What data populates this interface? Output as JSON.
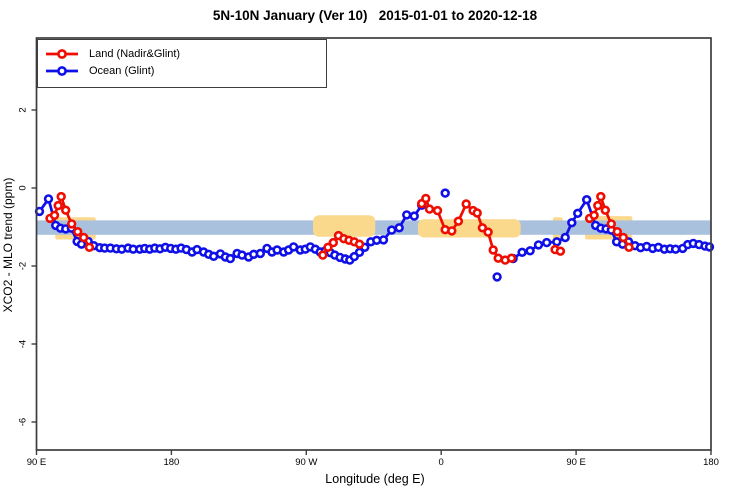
{
  "title": "5N-10N January (Ver 10)   2015-01-01 to 2020-12-18",
  "legend": {
    "items": [
      {
        "label": "Land (Nadir&Glint)",
        "color": "#ee0d00"
      },
      {
        "label": "Ocean (Glint)",
        "color": "#0f0fe8"
      }
    ]
  },
  "colors": {
    "land": "#ee0d00",
    "ocean": "#0f0fe8",
    "reference_band": "#a9c1dd",
    "land_shading": "#fbd98c",
    "axis": "#3d3d3d",
    "marker_fill": "#ffffff"
  },
  "chart_data": {
    "type": "line",
    "title": "5N-10N January (Ver 10)   2015-01-01 to 2020-12-18",
    "xlabel": "Longitude (deg E)",
    "ylabel": "XCO2 - MLO trend (ppm)",
    "x_axis_note": "wrapped longitude axis: plot-degrees 90..540 shown as 90E,180,90W,0,90E,180",
    "xlim": [
      90,
      540
    ],
    "ylim": [
      -6.72,
      3.85
    ],
    "grid": false,
    "legend_position": "top-left",
    "x_ticks": [
      {
        "deg": 90,
        "label": "90 E"
      },
      {
        "deg": 180,
        "label": "180"
      },
      {
        "deg": 270,
        "label": "90 W"
      },
      {
        "deg": 360,
        "label": "0"
      },
      {
        "deg": 450,
        "label": "90 E"
      },
      {
        "deg": 540,
        "label": "180"
      }
    ],
    "y_ticks": [
      {
        "val": 2,
        "label": "2"
      },
      {
        "val": 0,
        "label": "0"
      },
      {
        "val": -2,
        "label": "-2"
      },
      {
        "val": -4,
        "label": "-4"
      },
      {
        "val": -6,
        "label": "-6"
      }
    ],
    "reference_band": {
      "x_from": 90,
      "x_to": 540,
      "y_from": -0.83,
      "y_to": -1.2,
      "color": "#a9c1dd"
    },
    "land_shading": [
      {
        "x_from": 102.5,
        "x_to": 129.5,
        "y_from": -0.75,
        "y_to": -1.32,
        "layer": "under"
      },
      {
        "x_from": 274.5,
        "x_to": 316.0,
        "y_from": -0.7,
        "y_to": -1.25,
        "layer": "over"
      },
      {
        "x_from": 344.5,
        "x_to": 413.0,
        "y_from": -0.8,
        "y_to": -1.27,
        "layer": "over"
      },
      {
        "x_from": 434.5,
        "x_to": 441.0,
        "y_from": -0.75,
        "y_to": -1.32,
        "layer": "under"
      },
      {
        "x_from": 456.0,
        "x_to": 487.5,
        "y_from": -0.72,
        "y_to": -1.32,
        "layer": "under"
      }
    ],
    "series": [
      {
        "name": "Ocean (Glint)",
        "color": "#0f0fe8",
        "segments": [
          [
            [
              92,
              -0.6
            ],
            [
              98,
              -0.28
            ],
            [
              102.8,
              -0.96
            ],
            [
              106,
              -1.03
            ],
            [
              109.5,
              -1.05
            ],
            [
              113.3,
              -1.03
            ],
            [
              117.1,
              -1.37
            ],
            [
              120,
              -1.44
            ],
            [
              124.5,
              -1.37
            ],
            [
              128.2,
              -1.48
            ],
            [
              132.2,
              -1.53
            ],
            [
              135.5,
              -1.54
            ],
            [
              139.3,
              -1.54
            ],
            [
              143.3,
              -1.56
            ],
            [
              146.9,
              -1.57
            ],
            [
              151.1,
              -1.54
            ],
            [
              154.5,
              -1.57
            ],
            [
              158.9,
              -1.57
            ],
            [
              162.2,
              -1.55
            ],
            [
              165.5,
              -1.57
            ],
            [
              168.9,
              -1.54
            ],
            [
              172.4,
              -1.56
            ],
            [
              176,
              -1.52
            ],
            [
              179.5,
              -1.55
            ],
            [
              183,
              -1.57
            ],
            [
              186.5,
              -1.54
            ],
            [
              190,
              -1.58
            ],
            [
              193.8,
              -1.64
            ],
            [
              197.1,
              -1.58
            ],
            [
              201.5,
              -1.64
            ],
            [
              204.9,
              -1.7
            ],
            [
              208.2,
              -1.75
            ],
            [
              212.7,
              -1.69
            ],
            [
              216,
              -1.77
            ],
            [
              219.3,
              -1.81
            ],
            [
              223.8,
              -1.68
            ],
            [
              227.1,
              -1.72
            ],
            [
              231.5,
              -1.77
            ],
            [
              234.9,
              -1.7
            ],
            [
              239.3,
              -1.68
            ],
            [
              243.8,
              -1.55
            ],
            [
              247.1,
              -1.64
            ],
            [
              250.5,
              -1.59
            ],
            [
              254.9,
              -1.64
            ],
            [
              258.2,
              -1.59
            ],
            [
              261.5,
              -1.51
            ],
            [
              266,
              -1.59
            ],
            [
              269.3,
              -1.57
            ],
            [
              272.7,
              -1.51
            ],
            [
              276,
              -1.57
            ],
            [
              279.3,
              -1.64
            ],
            [
              282.7,
              -1.61
            ],
            [
              286,
              -1.66
            ],
            [
              289,
              -1.72
            ],
            [
              292.5,
              -1.78
            ],
            [
              296,
              -1.82
            ],
            [
              299,
              -1.85
            ],
            [
              302,
              -1.76
            ],
            [
              305.5,
              -1.65
            ],
            [
              309,
              -1.52
            ],
            [
              313,
              -1.38
            ],
            [
              317,
              -1.34
            ],
            [
              321.5,
              -1.33
            ],
            [
              327,
              -1.08
            ],
            [
              332,
              -1.02
            ],
            [
              337,
              -0.69
            ],
            [
              342,
              -0.72
            ],
            [
              347,
              -0.44
            ]
          ],
          [
            [
              362.7,
              -0.13
            ]
          ],
          [
            [
              397.3,
              -2.28
            ]
          ],
          [
            [
              408,
              -1.81
            ],
            [
              414,
              -1.65
            ],
            [
              419.3,
              -1.61
            ],
            [
              424.9,
              -1.46
            ],
            [
              430.4,
              -1.4
            ],
            [
              437.1,
              -1.38
            ],
            [
              442.7,
              -1.27
            ],
            [
              447.1,
              -0.89
            ],
            [
              451.1,
              -0.65
            ],
            [
              457.1,
              -0.3
            ],
            [
              463,
              -0.96
            ],
            [
              466.5,
              -1.03
            ],
            [
              470,
              -1.05
            ],
            [
              473.5,
              -1.08
            ],
            [
              477,
              -1.38
            ],
            [
              481,
              -1.44
            ],
            [
              485,
              -1.38
            ],
            [
              489.3,
              -1.48
            ],
            [
              493,
              -1.53
            ],
            [
              497.1,
              -1.5
            ],
            [
              501.1,
              -1.55
            ],
            [
              504.9,
              -1.52
            ],
            [
              508.9,
              -1.57
            ],
            [
              512.7,
              -1.56
            ],
            [
              516.4,
              -1.57
            ],
            [
              521.1,
              -1.55
            ],
            [
              524.5,
              -1.45
            ],
            [
              528.2,
              -1.42
            ],
            [
              532,
              -1.45
            ],
            [
              536,
              -1.49
            ],
            [
              539,
              -1.51
            ]
          ]
        ]
      },
      {
        "name": "Land (Nadir&Glint)",
        "color": "#ee0d00",
        "segments": [
          [
            [
              99,
              -0.78
            ],
            [
              102,
              -0.7
            ],
            [
              104.5,
              -0.45
            ],
            [
              106.5,
              -0.22
            ],
            [
              109.5,
              -0.57
            ],
            [
              113.5,
              -0.92
            ],
            [
              117.5,
              -1.12
            ],
            [
              121.5,
              -1.27
            ],
            [
              125.3,
              -1.52
            ]
          ],
          [
            [
              281,
              -1.72
            ],
            [
              284.5,
              -1.52
            ],
            [
              288,
              -1.4
            ],
            [
              291.5,
              -1.22
            ],
            [
              295,
              -1.3
            ],
            [
              298.5,
              -1.34
            ],
            [
              302,
              -1.38
            ],
            [
              305.5,
              -1.44
            ]
          ],
          [
            [
              347,
              -0.4
            ],
            [
              349.7,
              -0.27
            ],
            [
              352.2,
              -0.54
            ],
            [
              357.5,
              -0.58
            ],
            [
              362.7,
              -1.07
            ],
            [
              367.1,
              -1.1
            ],
            [
              371.5,
              -0.85
            ],
            [
              376.7,
              -0.41
            ],
            [
              381.3,
              -0.58
            ],
            [
              384,
              -0.64
            ],
            [
              387.5,
              -1.02
            ],
            [
              391.3,
              -1.13
            ],
            [
              394.7,
              -1.59
            ],
            [
              398,
              -1.8
            ],
            [
              402.7,
              -1.85
            ],
            [
              406.9,
              -1.8
            ]
          ],
          [
            [
              436,
              -1.58
            ],
            [
              439.5,
              -1.62
            ]
          ],
          [
            [
              459,
              -0.78
            ],
            [
              462,
              -0.7
            ],
            [
              464.5,
              -0.45
            ],
            [
              466.5,
              -0.22
            ],
            [
              469.5,
              -0.57
            ],
            [
              473.5,
              -0.92
            ],
            [
              477.5,
              -1.12
            ],
            [
              481.5,
              -1.27
            ],
            [
              485.3,
              -1.52
            ]
          ]
        ]
      }
    ]
  },
  "axis_titles": {
    "x": "Longitude (deg E)",
    "y": "XCO2 - MLO trend (ppm)"
  }
}
